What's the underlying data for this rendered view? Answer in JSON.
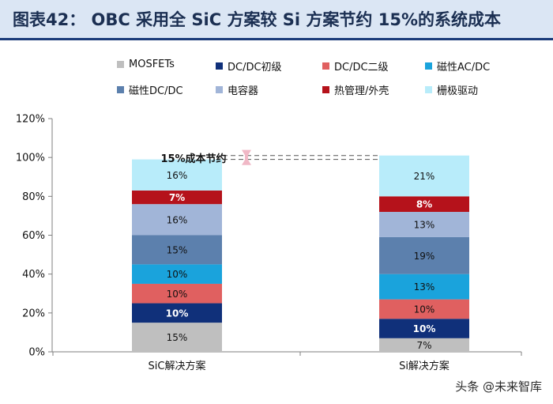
{
  "header": {
    "title": "图表42： OBC 采用全 SiC 方案较 Si 方案节约 15%的系统成本"
  },
  "annotation": {
    "label": "15%成本节约"
  },
  "watermark": {
    "text": "头条 @未来智库"
  },
  "chart_data": {
    "type": "bar",
    "stacked": true,
    "categories": [
      "SiC解决方案",
      "Si解决方案"
    ],
    "ylim": [
      0,
      120
    ],
    "yticks": [
      0,
      20,
      40,
      60,
      80,
      100,
      120
    ],
    "ytick_labels": [
      "0%",
      "20%",
      "40%",
      "60%",
      "80%",
      "100%",
      "120%"
    ],
    "legend_position": "top",
    "series": [
      {
        "name": "MOSFETs",
        "color": "#bfbfbf",
        "label_color": "#111111",
        "values": [
          15,
          7
        ],
        "labels": [
          "15%",
          "7%"
        ]
      },
      {
        "name": "DC/DC初级",
        "color": "#10307a",
        "label_color": "#ffffff",
        "values": [
          10,
          10
        ],
        "labels": [
          "10%",
          "10%"
        ]
      },
      {
        "name": "DC/DC二级",
        "color": "#e06060",
        "label_color": "#111111",
        "values": [
          10,
          10
        ],
        "labels": [
          "10%",
          "10%"
        ]
      },
      {
        "name": "磁性AC/DC",
        "color": "#1aa3dc",
        "label_color": "#111111",
        "values": [
          10,
          13
        ],
        "labels": [
          "10%",
          "13%"
        ]
      },
      {
        "name": "磁性DC/DC",
        "color": "#5c80ad",
        "label_color": "#111111",
        "values": [
          15,
          19
        ],
        "labels": [
          "15%",
          "19%"
        ]
      },
      {
        "name": "电容器",
        "color": "#a1b5d8",
        "label_color": "#111111",
        "values": [
          16,
          13
        ],
        "labels": [
          "16%",
          "13%"
        ]
      },
      {
        "name": "热管理/外壳",
        "color": "#b5121b",
        "label_color": "#ffffff",
        "values": [
          7,
          8
        ],
        "labels": [
          "7%",
          "8%"
        ]
      },
      {
        "name": "栅极驱动",
        "color": "#b8ecfa",
        "label_color": "#111111",
        "values": [
          16,
          21
        ],
        "labels": [
          "16%",
          "21%"
        ]
      }
    ]
  }
}
